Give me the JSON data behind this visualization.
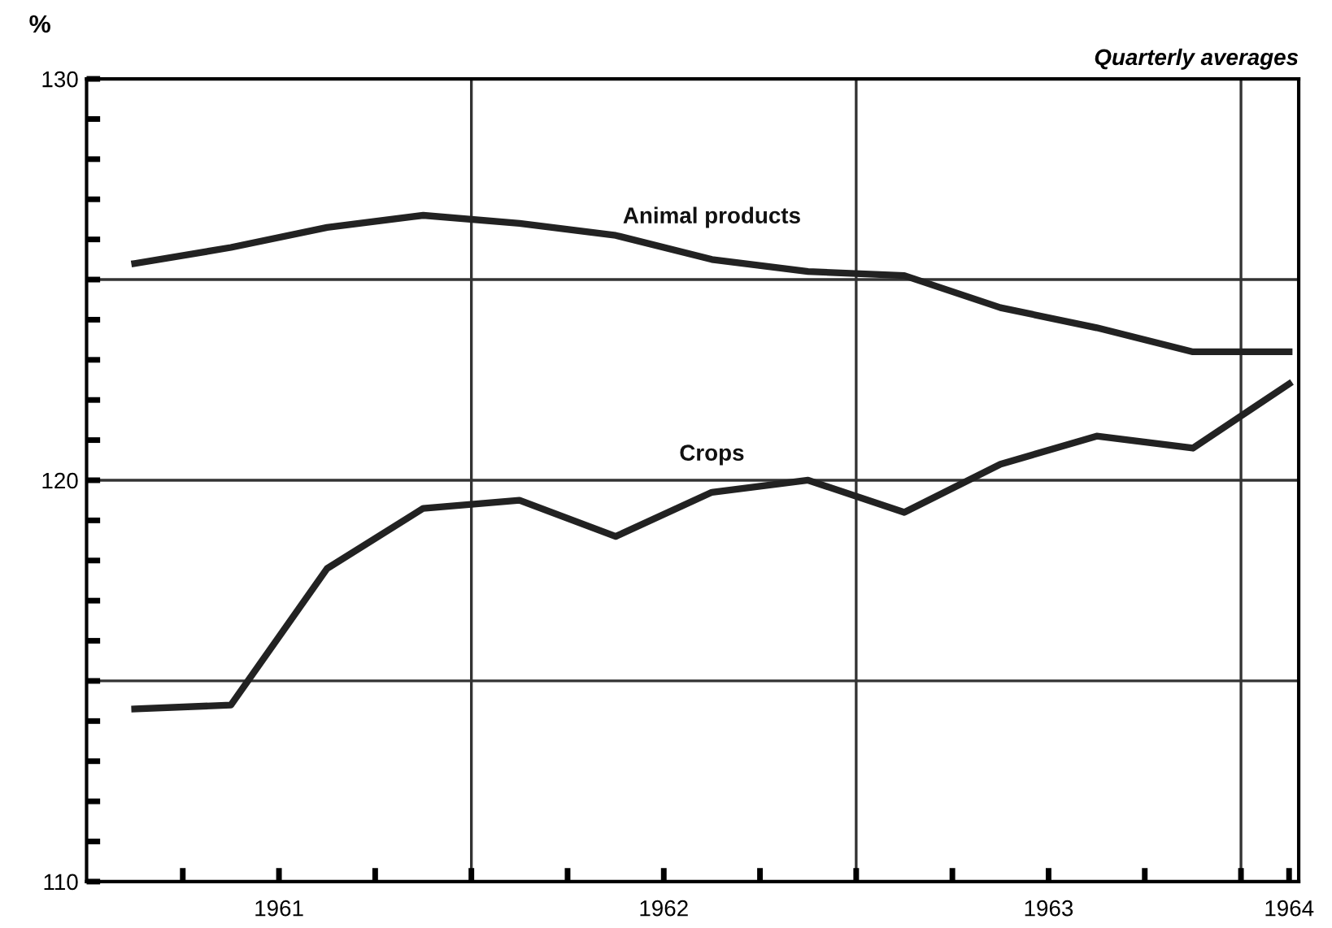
{
  "chart_data": {
    "type": "line",
    "ylabel": "%",
    "subtitle": "Quarterly averages",
    "x": [
      1961.125,
      1961.375,
      1961.625,
      1961.875,
      1962.125,
      1962.375,
      1962.625,
      1962.875,
      1963.125,
      1963.375,
      1963.625,
      1963.875,
      1964.125
    ],
    "series": [
      {
        "name": "Animal products",
        "color": "#222222",
        "values": [
          125.4,
          125.8,
          126.3,
          126.6,
          126.4,
          126.1,
          125.5,
          125.2,
          125.1,
          124.3,
          123.8,
          123.2,
          123.2
        ]
      },
      {
        "name": "Crops",
        "color": "#222222",
        "values": [
          114.3,
          114.4,
          117.8,
          119.3,
          119.5,
          118.6,
          119.7,
          120.0,
          119.2,
          120.4,
          121.1,
          120.8,
          122.4
        ]
      }
    ],
    "xlim": [
      1961,
      1964.15
    ],
    "xticks": [
      {
        "value": 1961.25,
        "label": null
      },
      {
        "value": 1961.5,
        "label": "1961"
      },
      {
        "value": 1961.75,
        "label": null
      },
      {
        "value": 1962,
        "label": null
      },
      {
        "value": 1962.25,
        "label": null
      },
      {
        "value": 1962.5,
        "label": "1962"
      },
      {
        "value": 1962.75,
        "label": null
      },
      {
        "value": 1963,
        "label": null
      },
      {
        "value": 1963.25,
        "label": null
      },
      {
        "value": 1963.5,
        "label": "1963"
      },
      {
        "value": 1963.75,
        "label": null
      },
      {
        "value": 1964,
        "label": null
      },
      {
        "value": 1964.125,
        "label": "1964"
      }
    ],
    "ylim": [
      110,
      130
    ],
    "yticks": [
      110,
      {
        "value": 111,
        "label": null
      },
      {
        "value": 112,
        "label": null
      },
      {
        "value": 113,
        "label": null
      },
      {
        "value": 114,
        "label": null
      },
      {
        "value": 115,
        "label": null
      },
      {
        "value": 116,
        "label": null
      },
      {
        "value": 117,
        "label": null
      },
      {
        "value": 118,
        "label": null
      },
      {
        "value": 119,
        "label": null
      },
      120,
      {
        "value": 121,
        "label": null
      },
      {
        "value": 122,
        "label": null
      },
      {
        "value": 123,
        "label": null
      },
      {
        "value": 124,
        "label": null
      },
      {
        "value": 125,
        "label": null
      },
      {
        "value": 126,
        "label": null
      },
      {
        "value": 127,
        "label": null
      },
      {
        "value": 128,
        "label": null
      },
      {
        "value": 129,
        "label": null
      },
      130
    ],
    "ref_lines": [
      {
        "axis": "y",
        "value": 115,
        "color": "#333333"
      },
      {
        "axis": "y",
        "value": 120,
        "color": "#333333"
      },
      {
        "axis": "y",
        "value": 125,
        "color": "#333333"
      },
      {
        "axis": "x",
        "value": 1962,
        "color": "#333333"
      },
      {
        "axis": "x",
        "value": 1963,
        "color": "#333333"
      },
      {
        "axis": "x",
        "value": 1964,
        "color": "#333333"
      }
    ],
    "grid": false,
    "legend": false,
    "marker": "none",
    "line_style": "solid"
  }
}
